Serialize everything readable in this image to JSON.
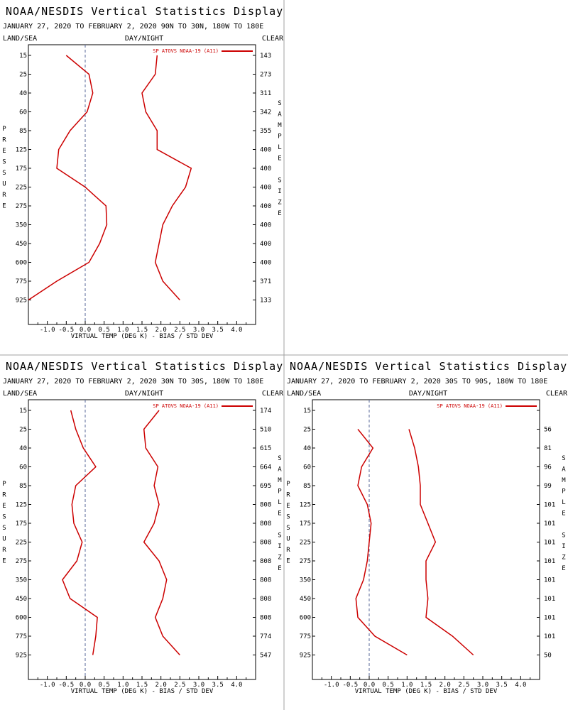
{
  "colors": {
    "series": "#cc0000",
    "zero_line": "#5a6a9a",
    "divider": "#a0a0a0"
  },
  "chart_data": [
    {
      "type": "line",
      "title": "NOAA/NESDIS Vertical Statistics Display",
      "subtitle": "JANUARY 27, 2020 TO FEBRUARY 2, 2020 90N TO 30N, 180W TO 180E",
      "label_left": "LAND/SEA",
      "label_center": "DAY/NIGHT",
      "label_right": "CLEAR",
      "ylabel": "PRESSURE",
      "y2label": "SAMPLE SIZE",
      "xlabel": "VIRTUAL TEMP (DEG K) - BIAS / STD DEV",
      "legend": "SP ATOVS NOAA-19 (A11)",
      "xlim": [
        -1.5,
        4.5
      ],
      "xticks": [
        "-1.0",
        "-0.5",
        "0.0",
        "0.5",
        "1.0",
        "1.5",
        "2.0",
        "2.5",
        "3.0",
        "3.5",
        "4.0"
      ],
      "pressure_levels": [
        "15",
        "25",
        "40",
        "60",
        "85",
        "125",
        "175",
        "225",
        "275",
        "350",
        "450",
        "600",
        "775",
        "925"
      ],
      "sample_size": [
        "143",
        "273",
        "311",
        "342",
        "355",
        "400",
        "400",
        "400",
        "400",
        "400",
        "400",
        "400",
        "371",
        "133"
      ],
      "series": [
        {
          "values": [
            -0.5,
            0.1,
            0.2,
            0.05,
            -0.4,
            -0.7,
            -0.75,
            0.0,
            0.55,
            0.57,
            0.38,
            0.1,
            -0.75,
            -1.5
          ]
        },
        {
          "values": [
            1.9,
            1.85,
            1.5,
            1.6,
            1.9,
            1.9,
            2.8,
            2.65,
            2.3,
            2.05,
            1.95,
            1.85,
            2.05,
            2.5
          ]
        }
      ]
    },
    {
      "type": "line",
      "title": "NOAA/NESDIS Vertical Statistics Display",
      "subtitle": "JANUARY 27, 2020 TO FEBRUARY 2, 2020 30N TO 30S, 180W TO 180E",
      "label_left": "LAND/SEA",
      "label_center": "DAY/NIGHT",
      "label_right": "CLEAR",
      "ylabel": "PRESSURE",
      "y2label": "SAMPLE SIZE",
      "xlabel": "VIRTUAL TEMP (DEG K) - BIAS / STD DEV",
      "legend": "SP ATOVS NOAA-19 (A11)",
      "xlim": [
        -1.5,
        4.5
      ],
      "xticks": [
        "-1.0",
        "-0.5",
        "0.0",
        "0.5",
        "1.0",
        "1.5",
        "2.0",
        "2.5",
        "3.0",
        "3.5",
        "4.0"
      ],
      "pressure_levels": [
        "15",
        "25",
        "40",
        "60",
        "85",
        "125",
        "175",
        "225",
        "275",
        "350",
        "450",
        "600",
        "775",
        "925"
      ],
      "sample_size": [
        "174",
        "510",
        "615",
        "664",
        "695",
        "808",
        "808",
        "808",
        "808",
        "808",
        "808",
        "808",
        "774",
        "547"
      ],
      "series": [
        {
          "values": [
            -0.38,
            -0.25,
            -0.05,
            0.28,
            -0.25,
            -0.35,
            -0.3,
            -0.08,
            -0.22,
            -0.6,
            -0.4,
            0.32,
            0.28,
            0.2
          ]
        },
        {
          "values": [
            1.95,
            1.55,
            1.6,
            1.92,
            1.82,
            1.95,
            1.82,
            1.55,
            1.95,
            2.15,
            2.05,
            1.85,
            2.05,
            2.5
          ]
        }
      ]
    },
    {
      "type": "line",
      "title": "NOAA/NESDIS Vertical Statistics Display",
      "subtitle": "JANUARY 27, 2020 TO FEBRUARY 2, 2020 30S TO 90S, 180W TO 180E",
      "label_left": "LAND/SEA",
      "label_center": "DAY/NIGHT",
      "label_right": "CLEAR",
      "ylabel": "PRESSURE",
      "y2label": "SAMPLE SIZE",
      "xlabel": "VIRTUAL TEMP (DEG K) - BIAS / STD DEV",
      "legend": "SP ATOVS NOAA-19 (A11)",
      "xlim": [
        -1.5,
        4.5
      ],
      "xticks": [
        "-1.0",
        "-0.5",
        "0.0",
        "0.5",
        "1.0",
        "1.5",
        "2.0",
        "2.5",
        "3.0",
        "3.5",
        "4.0"
      ],
      "pressure_levels": [
        "15",
        "25",
        "40",
        "60",
        "85",
        "125",
        "175",
        "225",
        "275",
        "350",
        "450",
        "600",
        "775",
        "925"
      ],
      "sample_size": [
        "",
        "56",
        "81",
        "96",
        "99",
        "101",
        "101",
        "101",
        "101",
        "101",
        "101",
        "101",
        "101",
        "50"
      ],
      "series": [
        {
          "values": [
            null,
            -0.3,
            0.1,
            -0.2,
            -0.3,
            -0.05,
            0.05,
            0.0,
            -0.05,
            -0.15,
            -0.35,
            -0.3,
            0.15,
            1.0
          ]
        },
        {
          "values": [
            null,
            1.05,
            1.2,
            1.3,
            1.35,
            1.35,
            1.55,
            1.75,
            1.5,
            1.5,
            1.55,
            1.5,
            2.2,
            2.75
          ]
        }
      ]
    }
  ]
}
